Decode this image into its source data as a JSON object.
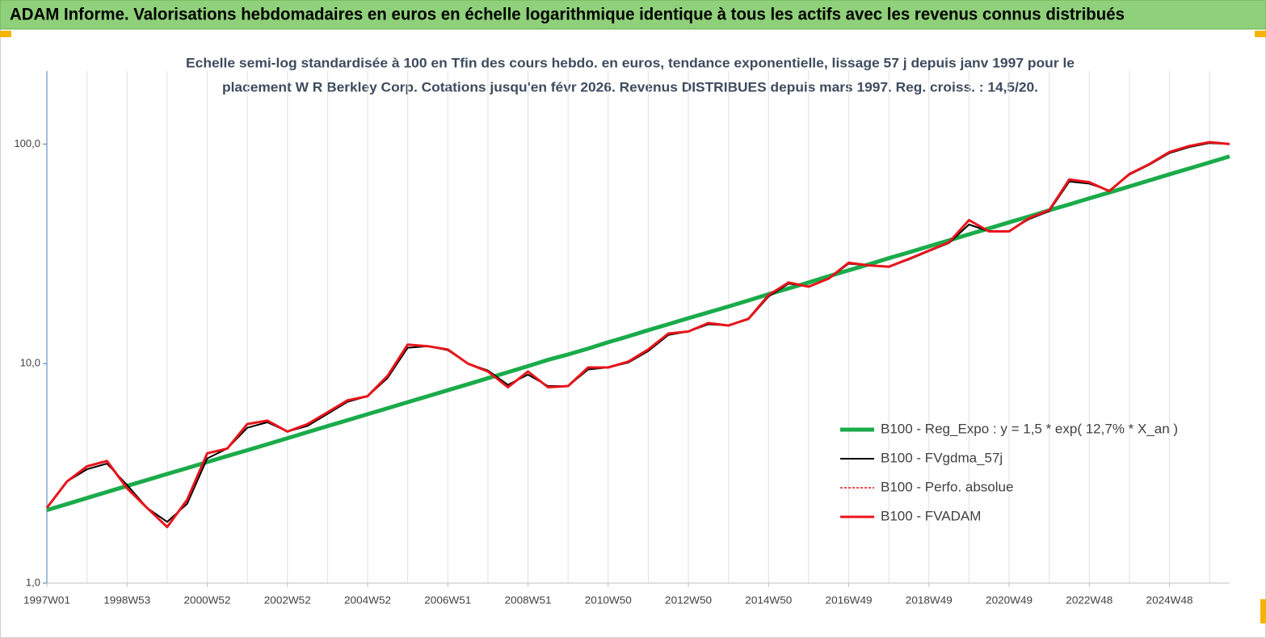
{
  "chart_data": {
    "type": "line",
    "title": "ADAM Informe. Valorisations hebdomadaires en euros en échelle logarithmique identique à tous les actifs avec les revenus connus distribués",
    "subtitle": [
      "Echelle semi-log standardisée à 100 en Tfin des cours hebdo. en euros, tendance exponentielle, lissage 57 j depuis janv 1997 pour le",
      "placement W R Berkley Corp. Cotations jusqu'en févr 2026. Revenus DISTRIBUES depuis mars 1997. Reg. croiss. : 14,5/20."
    ],
    "categories": [
      "1997W01",
      null,
      null,
      null,
      "1998W53",
      null,
      null,
      null,
      "2000W52",
      null,
      null,
      null,
      "2002W52",
      null,
      null,
      null,
      "2004W52",
      null,
      null,
      null,
      "2006W51",
      null,
      null,
      null,
      "2008W51",
      null,
      null,
      null,
      "2010W50",
      null,
      null,
      null,
      "2012W50",
      null,
      null,
      null,
      "2014W50",
      null,
      null,
      null,
      "2016W49",
      null,
      null,
      null,
      "2018W49",
      null,
      null,
      null,
      "2020W49",
      null,
      null,
      null,
      "2022W48",
      null,
      null,
      null,
      "2024W48",
      null,
      null,
      null
    ],
    "ylog": true,
    "ylim": [
      1,
      215
    ],
    "yticks": [
      {
        "value": 1,
        "label": "1,0"
      },
      {
        "value": 10,
        "label": "10,0"
      },
      {
        "value": 100,
        "label": "100,0"
      }
    ],
    "legend": "lower right",
    "series": [
      {
        "name": "B100 - Reg_Expo : y = 1,5 * exp( 12,7% *  X_an )",
        "color": "#1aab4a",
        "width": 5,
        "dash": "none",
        "values": [
          2.15,
          2.29,
          2.44,
          2.6,
          2.77,
          2.95,
          3.14,
          3.34,
          3.56,
          3.79,
          4.03,
          4.29,
          4.57,
          4.87,
          5.19,
          5.52,
          5.88,
          6.26,
          6.67,
          7.1,
          7.56,
          8.05,
          8.58,
          9.13,
          9.73,
          10.4,
          11,
          11.7,
          12.5,
          13.3,
          14.2,
          15.1,
          16.1,
          17.1,
          18.2,
          19.4,
          20.7,
          22,
          23.4,
          25,
          26.6,
          28.3,
          30.2,
          32.1,
          34.2,
          36.4,
          38.8,
          41.3,
          44,
          46.8,
          49.9,
          53.1,
          56.6,
          60.2,
          64.1,
          68.3,
          72.8,
          77.5,
          82.5,
          87.9
        ]
      },
      {
        "name": "B100 - FVgdma_57j",
        "color": "#000000",
        "width": 2,
        "dash": "none",
        "values": [
          2.2,
          2.9,
          3.3,
          3.5,
          2.8,
          2.2,
          1.9,
          2.3,
          3.7,
          4.1,
          5.1,
          5.4,
          4.9,
          5.2,
          5.9,
          6.7,
          7.1,
          8.6,
          11.8,
          12,
          11.5,
          10,
          9.3,
          8,
          8.9,
          7.9,
          7.9,
          9.4,
          9.6,
          10.1,
          11.4,
          13.5,
          14,
          15.1,
          14.9,
          15.9,
          20.2,
          23.1,
          22.5,
          24.3,
          28.5,
          28,
          27.6,
          29.8,
          32.5,
          35.4,
          43,
          40,
          40.2,
          45.5,
          49.5,
          67.5,
          66,
          61.5,
          72.5,
          80.5,
          91,
          97,
          101,
          100
        ]
      },
      {
        "name": "B100 - Perfo. absolue",
        "color": "#e8141b",
        "width": 1.5,
        "dash": "3 2",
        "values": [
          2.2,
          2.9,
          3.4,
          3.6,
          2.7,
          2.2,
          1.8,
          2.4,
          3.9,
          4.1,
          5.3,
          5.5,
          4.9,
          5.3,
          6,
          6.8,
          7.1,
          8.8,
          12.2,
          12,
          11.6,
          10,
          9.2,
          7.8,
          9.2,
          7.8,
          7.9,
          9.6,
          9.6,
          10.2,
          11.6,
          13.7,
          14,
          15.3,
          14.9,
          16,
          20.5,
          23.4,
          22.4,
          24.4,
          28.8,
          28,
          27.6,
          30,
          32.7,
          35.7,
          45,
          40,
          40,
          46,
          50,
          69,
          67,
          61,
          73,
          81,
          92,
          98,
          102,
          100
        ]
      },
      {
        "name": "B100 - FVADAM",
        "color": "#e8141b",
        "width": 3,
        "dash": "none",
        "values": [
          2.2,
          2.9,
          3.4,
          3.6,
          2.7,
          2.2,
          1.8,
          2.4,
          3.9,
          4.1,
          5.3,
          5.5,
          4.9,
          5.3,
          6,
          6.8,
          7.1,
          8.8,
          12.2,
          12,
          11.6,
          10,
          9.2,
          7.8,
          9.2,
          7.8,
          7.9,
          9.6,
          9.6,
          10.2,
          11.6,
          13.7,
          14,
          15.3,
          14.9,
          16,
          20.5,
          23.4,
          22.4,
          24.4,
          28.8,
          28,
          27.6,
          30,
          32.7,
          35.7,
          45,
          40,
          40,
          46,
          50,
          69,
          67,
          61,
          73,
          81,
          92,
          98,
          102,
          100
        ]
      }
    ]
  }
}
